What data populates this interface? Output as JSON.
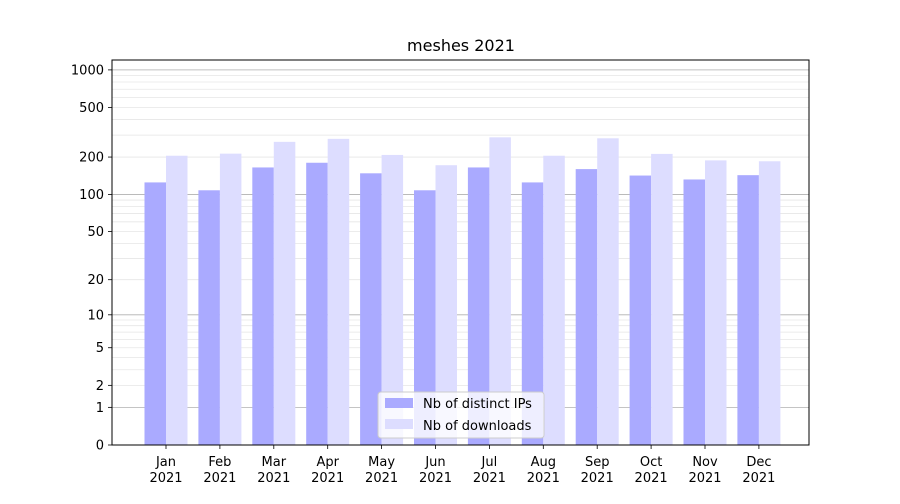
{
  "chart_data": {
    "type": "bar",
    "title": "meshes 2021",
    "xlabel": "",
    "ylabel": "",
    "y_scale": "log(1+y)",
    "ylim": [
      0,
      1200
    ],
    "y_ticks": [
      0,
      1,
      2,
      5,
      10,
      20,
      50,
      100,
      200,
      500,
      1000
    ],
    "grid": "horizontal",
    "legend_position": "bottom-center",
    "categories": [
      "Jan\n2021",
      "Feb\n2021",
      "Mar\n2021",
      "Apr\n2021",
      "May\n2021",
      "Jun\n2021",
      "Jul\n2021",
      "Aug\n2021",
      "Sep\n2021",
      "Oct\n2021",
      "Nov\n2021",
      "Dec\n2021"
    ],
    "series": [
      {
        "name": "Nb of distinct IPs",
        "color": "#aaaaff",
        "values": [
          125,
          108,
          165,
          180,
          148,
          108,
          165,
          125,
          160,
          142,
          132,
          143
        ]
      },
      {
        "name": "Nb of downloads",
        "color": "#ddddff",
        "values": [
          205,
          213,
          265,
          280,
          208,
          172,
          288,
          205,
          283,
          212,
          188,
          185
        ]
      }
    ]
  }
}
